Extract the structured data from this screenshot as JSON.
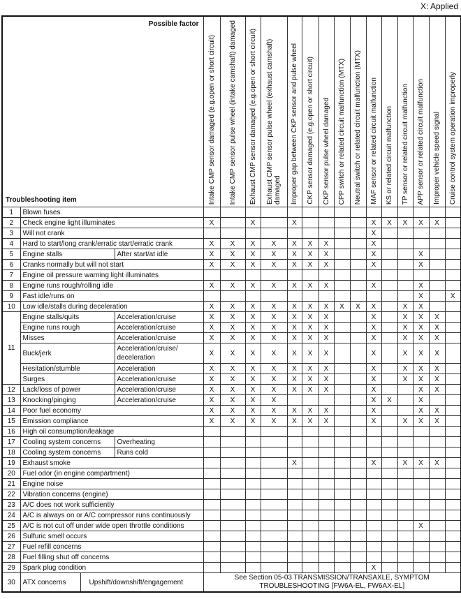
{
  "legend": "X: Applied",
  "header": {
    "possible_factor": "Possible factor",
    "troubleshooting_item": "Troubleshooting item",
    "factors": [
      "Intake CMP sensor damaged (e.g.open or short circuit)",
      "Intake CMP sensor pulse wheel (intake camshaft) damaged",
      "Exhaust CMP sensor damaged (e.g.open or short circuit)",
      "Exhaust CMP sensor pulse wheel (exhaust camshaft) damaged",
      "Improper gap between CKP sensor and pulse wheel",
      "CKP sensor damaged (e.g.open or short circuit)",
      "CKP sensor pulse wheel damaged",
      "CPP switch or related circuit malfunction (MTX)",
      "Neutral switch or related circuit malfunction (MTX)",
      "MAF sensor or related circuit malfunction",
      "KS or related circuit malfunction",
      "TP sensor or related circuit malfunction",
      "APP sensor or related circuit malfunction",
      "Improper vehicle speed signal",
      "Cruise control system operation improperly"
    ]
  },
  "mark_symbol": "X",
  "rows": [
    {
      "no": "1",
      "item": "Blown fuses",
      "sub": "",
      "marks": []
    },
    {
      "no": "2",
      "item": "Check engine light illuminates",
      "sub": "",
      "marks": [
        1,
        3,
        5,
        10,
        11,
        12,
        13,
        14
      ]
    },
    {
      "no": "3",
      "item": "Will not crank",
      "sub": "",
      "marks": [
        10
      ]
    },
    {
      "no": "4",
      "item": "Hard to start/long crank/erratic start/erratic crank",
      "sub": "",
      "marks": [
        1,
        2,
        3,
        4,
        5,
        6,
        7,
        10
      ]
    },
    {
      "no": "5",
      "item": "Engine stalls",
      "sub": "After start/at idle",
      "marks": [
        1,
        2,
        3,
        4,
        5,
        6,
        7,
        10,
        13
      ]
    },
    {
      "no": "6",
      "item": "Cranks normally but will not start",
      "sub": "",
      "marks": [
        1,
        2,
        3,
        4,
        5,
        6,
        7,
        10,
        13
      ]
    },
    {
      "no": "7",
      "item": "Engine oil pressure warning light illuminates",
      "sub": "",
      "marks": []
    },
    {
      "no": "8",
      "item": "Engine runs rough/rolling idle",
      "sub": "",
      "marks": [
        1,
        2,
        3,
        4,
        5,
        6,
        7,
        10,
        13
      ]
    },
    {
      "no": "9",
      "item": "Fast idle/runs on",
      "sub": "",
      "marks": [
        13,
        15
      ]
    },
    {
      "no": "10",
      "item": "Low idle/stalls during deceleration",
      "sub": "",
      "marks": [
        1,
        2,
        3,
        4,
        5,
        6,
        7,
        8,
        9,
        10,
        12,
        13
      ]
    },
    {
      "no": "11",
      "group": 6,
      "item": "Engine stalls/quits",
      "sub": "Acceleration/cruise",
      "marks": [
        1,
        2,
        3,
        4,
        5,
        6,
        7,
        10,
        12,
        13,
        14
      ]
    },
    {
      "no": "",
      "item": "Engine runs rough",
      "sub": "Acceleration/cruise",
      "marks": [
        1,
        2,
        3,
        4,
        5,
        6,
        7,
        10,
        12,
        13,
        14
      ]
    },
    {
      "no": "",
      "item": "Misses",
      "sub": "Acceleration/cruise",
      "marks": [
        1,
        2,
        3,
        4,
        5,
        6,
        7,
        10,
        12,
        13,
        14
      ]
    },
    {
      "no": "",
      "item": "Buck/jerk",
      "sub": "Acceleration/cruise/ deceleration",
      "tall": true,
      "marks": [
        1,
        2,
        3,
        4,
        5,
        6,
        7,
        10,
        12,
        13,
        14
      ]
    },
    {
      "no": "",
      "item": "Hesitation/stumble",
      "sub": "Acceleration",
      "marks": [
        1,
        2,
        3,
        4,
        5,
        6,
        7,
        10,
        12,
        13,
        14
      ]
    },
    {
      "no": "",
      "item": "Surges",
      "sub": "Acceleration/cruise",
      "marks": [
        1,
        2,
        3,
        4,
        5,
        6,
        7,
        10,
        12,
        13,
        14
      ]
    },
    {
      "no": "12",
      "item": "Lack/loss of power",
      "sub": "Acceleration/cruise",
      "marks": [
        1,
        2,
        3,
        4,
        5,
        6,
        7,
        10,
        13,
        14
      ]
    },
    {
      "no": "13",
      "item": "Knocking/pinging",
      "sub": "Acceleration/cruise",
      "marks": [
        1,
        2,
        3,
        4,
        10,
        11,
        13
      ]
    },
    {
      "no": "14",
      "item": "Poor fuel economy",
      "sub": "",
      "marks": [
        1,
        2,
        3,
        4,
        5,
        6,
        7,
        10,
        13,
        14
      ]
    },
    {
      "no": "15",
      "item": "Emission compliance",
      "sub": "",
      "marks": [
        1,
        2,
        3,
        4,
        5,
        6,
        7,
        10,
        12,
        13,
        14
      ]
    },
    {
      "no": "16",
      "item": "High oil consumption/leakage",
      "sub": "",
      "marks": []
    },
    {
      "no": "17",
      "item": "Cooling system concerns",
      "sub": "Overheating",
      "marks": []
    },
    {
      "no": "18",
      "item": "Cooling system concerns",
      "sub": "Runs cold",
      "marks": []
    },
    {
      "no": "19",
      "item": "Exhaust smoke",
      "sub": "",
      "marks": [
        5,
        10,
        12,
        13,
        14
      ]
    },
    {
      "no": "20",
      "item": "Fuel odor (in engine compartment)",
      "sub": "",
      "marks": []
    },
    {
      "no": "21",
      "item": "Engine noise",
      "sub": "",
      "marks": []
    },
    {
      "no": "22",
      "item": "Vibration concerns (engine)",
      "sub": "",
      "marks": []
    },
    {
      "no": "23",
      "item": "A/C does not work sufficiently",
      "sub": "",
      "marks": []
    },
    {
      "no": "24",
      "item": "A/C is always on or A/C compressor runs continuously",
      "sub": "",
      "marks": []
    },
    {
      "no": "25",
      "item": "A/C is not cut off under wide open throttle conditions",
      "sub": "",
      "marks": [
        13
      ]
    },
    {
      "no": "26",
      "item": "Sulfuric smell occurs",
      "sub": "",
      "marks": []
    },
    {
      "no": "27",
      "item": "Fuel refill concerns",
      "sub": "",
      "marks": []
    },
    {
      "no": "28",
      "item": "Fuel filling shut off concerns",
      "sub": "",
      "marks": []
    },
    {
      "no": "29",
      "item": "Spark plug condition",
      "sub": "",
      "marks": [
        10
      ]
    },
    {
      "no": "30",
      "item": "ATX concerns",
      "sub": "Upshift/downshift/engagement",
      "remark": "See Section 05-03 TRANSMISSION/TRANSAXLE, SYMPTOM TROUBLESHOOTING [FW6A-EL, FW6AX-EL]"
    }
  ]
}
